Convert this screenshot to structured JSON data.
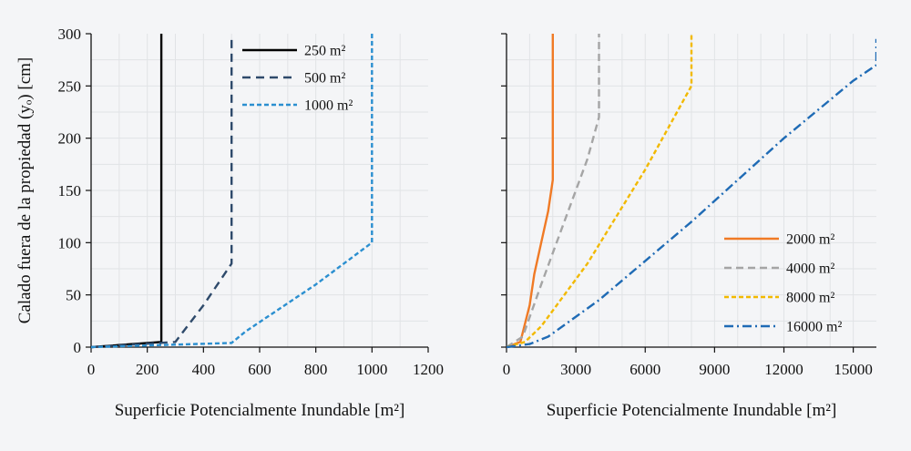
{
  "chart_data": [
    {
      "type": "line",
      "title": "",
      "xlabel": "Superficie Potencialmente Inundable [m²]",
      "ylabel": "Calado fuera de la propiedad (yₒ) [cm]",
      "xlim": [
        0,
        1200
      ],
      "ylim": [
        0,
        300
      ],
      "xticks": [
        "0",
        "200",
        "400",
        "600",
        "800",
        "1000",
        "1200"
      ],
      "yticks": [
        "0",
        "50",
        "100",
        "150",
        "200",
        "250",
        "300"
      ],
      "grid": true,
      "legend_position": "top-right",
      "series": [
        {
          "name": "250 m²",
          "color": "#000000",
          "dash": "solid",
          "x": [
            0,
            250,
            250
          ],
          "y": [
            0,
            5,
            300
          ]
        },
        {
          "name": "500 m²",
          "color": "#2e4a6b",
          "dash": "dash",
          "x": [
            0,
            300,
            400,
            500,
            500
          ],
          "y": [
            0,
            5,
            40,
            80,
            295
          ]
        },
        {
          "name": "1000 m²",
          "color": "#2b8fd0",
          "dash": "short-dash",
          "x": [
            0,
            500,
            550,
            800,
            1000,
            1000
          ],
          "y": [
            0,
            4,
            15,
            60,
            100,
            300
          ]
        }
      ]
    },
    {
      "type": "line",
      "title": "",
      "xlabel": "Superficie Potencialmente Inundable [m²]",
      "ylabel": "",
      "xlim": [
        0,
        16000
      ],
      "ylim": [
        0,
        300
      ],
      "xticks": [
        "0",
        "3000",
        "6000",
        "9000",
        "12000",
        "15000"
      ],
      "yticks": [],
      "grid": true,
      "legend_position": "center-right",
      "series": [
        {
          "name": "2000 m²",
          "color": "#f07a25",
          "dash": "solid",
          "x": [
            0,
            600,
            1000,
            1200,
            1500,
            1800,
            2000,
            2000
          ],
          "y": [
            0,
            5,
            40,
            70,
            100,
            130,
            160,
            300
          ]
        },
        {
          "name": "4000 m²",
          "color": "#a5a5a5",
          "dash": "long-dash",
          "x": [
            0,
            700,
            1500,
            2500,
            3500,
            4000,
            4000
          ],
          "y": [
            0,
            10,
            60,
            120,
            180,
            220,
            300
          ]
        },
        {
          "name": "8000 m²",
          "color": "#f2b900",
          "dash": "short-dash",
          "x": [
            0,
            800,
            1500,
            3500,
            6000,
            8000,
            8000
          ],
          "y": [
            0,
            5,
            20,
            80,
            170,
            250,
            300
          ]
        },
        {
          "name": "16000 m²",
          "color": "#1f6bb5",
          "dash": "dash-dot",
          "x": [
            0,
            1000,
            1800,
            4000,
            8000,
            12000,
            15000,
            16000,
            16000
          ],
          "y": [
            0,
            3,
            10,
            45,
            120,
            200,
            255,
            270,
            295
          ]
        }
      ]
    }
  ]
}
